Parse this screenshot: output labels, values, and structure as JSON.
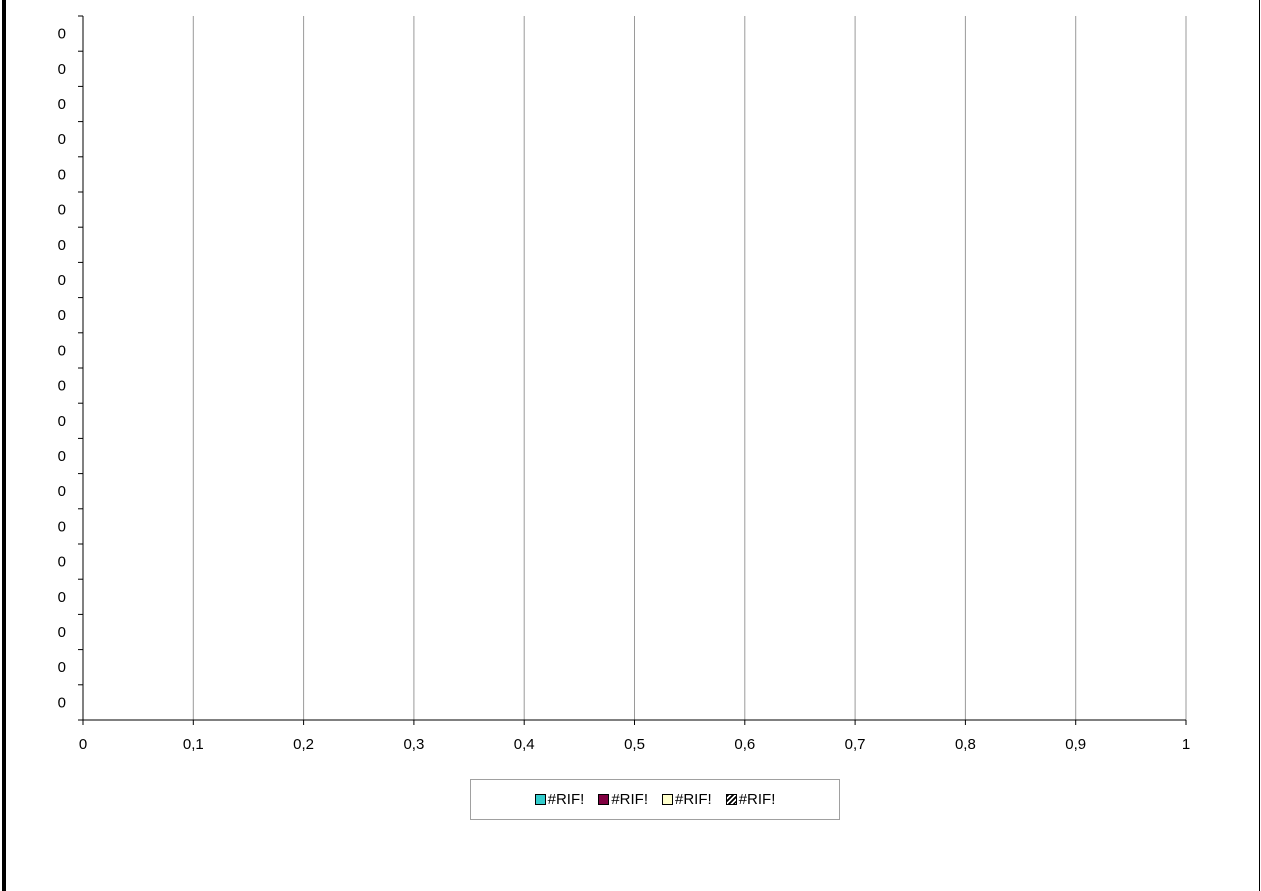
{
  "chart_data": {
    "type": "bar",
    "orientation": "horizontal",
    "title": "",
    "xlabel": "",
    "ylabel": "",
    "xlim": [
      0,
      1
    ],
    "x_ticks": [
      "0",
      "0,1",
      "0,2",
      "0,3",
      "0,4",
      "0,5",
      "0,6",
      "0,7",
      "0,8",
      "0,9",
      "1"
    ],
    "y_ticks": [
      "0",
      "0",
      "0",
      "0",
      "0",
      "0",
      "0",
      "0",
      "0",
      "0",
      "0",
      "0",
      "0",
      "0",
      "0",
      "0",
      "0",
      "0",
      "0",
      "0"
    ],
    "grid": "vertical",
    "legend_position": "bottom",
    "series": [
      {
        "name": "#RIF!",
        "color": "#33CCCC",
        "pattern": "solid",
        "values": []
      },
      {
        "name": "#RIF!",
        "color": "#800040",
        "pattern": "solid",
        "values": []
      },
      {
        "name": "#RIF!",
        "color": "#FFFFCC",
        "pattern": "solid",
        "values": []
      },
      {
        "name": "#RIF!",
        "color": "#000000",
        "pattern": "hatched",
        "values": []
      }
    ]
  }
}
